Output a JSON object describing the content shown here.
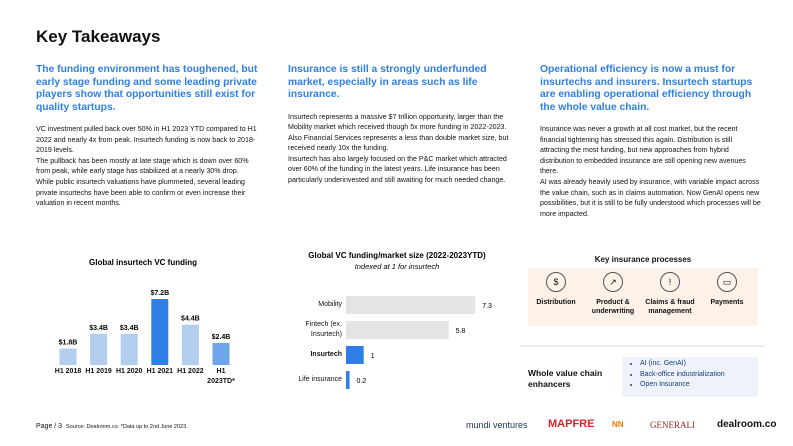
{
  "title": "Key Takeaways",
  "columns": [
    {
      "heading": "The funding environment has toughened, but early stage funding and some leading private players show that opportunities still exist for quality startups.",
      "paragraphs": [
        "VC investment pulled back over 50% in H1 2023 YTD compared to H1 2022 and nearly 4x from peak. Insurtech funding is now back to 2018-2019 levels.",
        "The pullback has been mostly at late stage which is down over 60% from peak, while early stage has stabilized at a nearly 30% drop.",
        "While public insurtech valuations have plummeted, several leading private insurtechs have been able to confirm or even increase their valuation in recent months."
      ]
    },
    {
      "heading": "Insurance is still a strongly underfunded market, especially in areas such as life insurance.",
      "paragraphs": [
        "Insurtech represents a massive $7 trillion opportunity, larger than the Mobility market which received though 5x more funding in 2022-2023. Also Financial Services represents a less than double market size, but received nearly 10x the funding.",
        "Insurtech has also largely focused on the P&C market which attracted over 60% of the funding in the latest years. Life insurance has been particularly underinvested and still awaiting for much needed change."
      ]
    },
    {
      "heading": "Operational efficiency is now a must for insurtechs and insurers. Insurtech startups are enabling operational efficiency through the whole value chain.",
      "paragraphs": [
        "Insurance was never a growth at all cost market, but the recent financial tightening has stressed this again. Distribution is still attracting the most funding, but new approaches from hybrid distribution to embedded insurance are still opening new avenues there.",
        "AI was already heavily used by insurance, with variable impact across the value chain, such as in claims automation. Now GenAI opens new possibilities, but it is still to be fully understood which processes will be more impacted."
      ]
    }
  ],
  "chart_data": [
    {
      "type": "bar",
      "title": "Global insurtech VC funding",
      "categories": [
        "H1 2018",
        "H1 2019",
        "H1 2020",
        "H1 2021",
        "H1 2022",
        "H1 2023TD*"
      ],
      "values": [
        1.8,
        3.4,
        3.4,
        7.2,
        4.4,
        2.4
      ],
      "value_labels": [
        "$1.8B",
        "$3.4B",
        "$3.4B",
        "$7.2B",
        "$4.4B",
        "$2.4B"
      ],
      "colors": [
        "#b3cdee",
        "#b3cdee",
        "#b3cdee",
        "#2f7fe6",
        "#b3cdee",
        "#6fa5ec"
      ]
    },
    {
      "type": "barh",
      "title": "Global VC funding/market size (2022-2023YTD)",
      "subtitle": "Indexed at 1 for insurtech",
      "categories": [
        "Mobility",
        "Fintech (ex. Insurtech)",
        "Insurtech",
        "Life insurance"
      ],
      "values": [
        7.3,
        5.8,
        1,
        0.2
      ],
      "colors": [
        "#e4e4e4",
        "#e4e4e4",
        "#2f7fe6",
        "#2f7fe6"
      ]
    }
  ],
  "processes": {
    "title": "Key insurance processes",
    "items": [
      "Distribution",
      "Product & underwriting",
      "Claims & fraud management",
      "Payments"
    ]
  },
  "enhancers": {
    "title": "Whole value chain enhancers",
    "items": [
      "AI (inc. GenAI)",
      "Back-office industrialization",
      "Open Insurance"
    ]
  },
  "footer": {
    "page": "Page / 3",
    "source": "Source: Dealroom.co. *Data up to 2nd June 2023.",
    "logos": [
      "mundi ventures",
      "MAPFRE",
      "NN",
      "GENERALI",
      "dealroom.co"
    ]
  }
}
